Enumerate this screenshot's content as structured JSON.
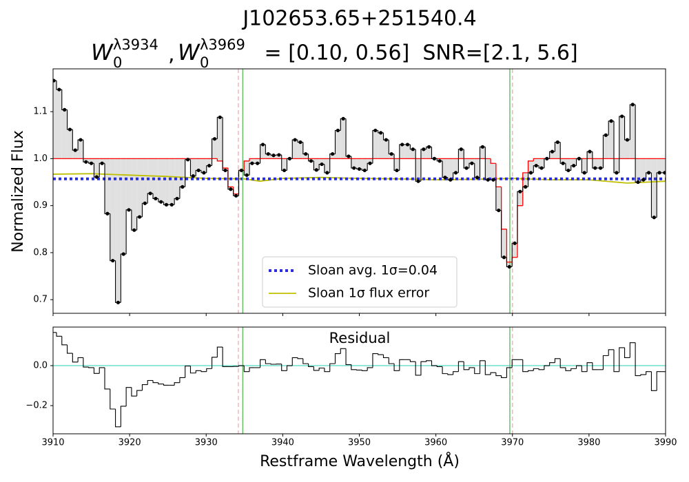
{
  "chart_data": [
    {
      "type": "line",
      "title": "J102653.65+251540.4",
      "subtitle_parts": [
        "W",
        "0",
        "λ3934",
        ",",
        "W",
        "0",
        "λ3969",
        " = [0.10, 0.56]  SNR=[2.1, 5.6]"
      ],
      "ylabel": "Normalized Flux",
      "ylim": [
        0.671,
        1.191
      ],
      "yticks": [
        0.7,
        0.8,
        0.9,
        {
          "value": 1.0,
          "label": "1.0"
        },
        1.1
      ],
      "x": [
        3910.1,
        3910.8,
        3911.5,
        3912.2,
        3912.9,
        3913.6,
        3914.3,
        3915.0,
        3915.7,
        3916.4,
        3917.1,
        3917.8,
        3918.5,
        3919.2,
        3919.9,
        3920.6,
        3921.3,
        3922.0,
        3922.7,
        3923.4,
        3924.1,
        3924.8,
        3925.5,
        3926.2,
        3926.9,
        3927.6,
        3928.3,
        3929.0,
        3929.7,
        3930.4,
        3931.1,
        3931.8,
        3932.5,
        3933.2,
        3933.9,
        3934.6,
        3935.3,
        3936.0,
        3936.7,
        3937.4,
        3938.1,
        3938.8,
        3939.5,
        3940.2,
        3940.9,
        3941.6,
        3942.3,
        3943.0,
        3943.7,
        3944.4,
        3945.1,
        3945.8,
        3946.5,
        3947.2,
        3947.9,
        3948.6,
        3949.3,
        3950.0,
        3950.7,
        3951.4,
        3952.1,
        3952.8,
        3953.5,
        3954.2,
        3954.9,
        3955.6,
        3956.3,
        3957.0,
        3957.7,
        3958.4,
        3959.1,
        3959.8,
        3960.5,
        3961.2,
        3961.9,
        3962.6,
        3963.3,
        3964.0,
        3964.7,
        3965.4,
        3966.1,
        3966.8,
        3967.5,
        3968.2,
        3968.9,
        3969.6,
        3970.3,
        3971.0,
        3971.7,
        3972.4,
        3973.1,
        3973.8,
        3974.5,
        3975.2,
        3975.9,
        3976.6,
        3977.3,
        3978.0,
        3978.7,
        3979.4,
        3980.1,
        3980.8,
        3981.5,
        3982.2,
        3982.9,
        3983.6,
        3984.3,
        3985.0,
        3985.7,
        3986.4,
        3987.1,
        3987.8,
        3988.5,
        3989.2,
        3989.9
      ],
      "flux": {
        "color": "#000000",
        "fill": "#e0e0e0",
        "values": [
          1.166,
          1.147,
          1.104,
          1.062,
          1.018,
          1.04,
          0.993,
          0.99,
          0.961,
          0.99,
          0.883,
          0.783,
          0.694,
          0.797,
          0.891,
          0.848,
          0.876,
          0.905,
          0.926,
          0.915,
          0.908,
          0.902,
          0.902,
          0.915,
          0.94,
          0.998,
          0.963,
          0.975,
          0.97,
          0.985,
          1.042,
          1.088,
          0.975,
          0.935,
          0.921,
          0.975,
          0.965,
          0.99,
          0.99,
          1.03,
          1.01,
          1.007,
          1.008,
          0.975,
          1.0,
          1.04,
          1.035,
          1.01,
          0.995,
          0.976,
          0.988,
          0.97,
          1.01,
          1.06,
          1.085,
          1.005,
          0.98,
          0.978,
          0.975,
          0.99,
          1.06,
          1.055,
          1.04,
          1.01,
          0.975,
          1.03,
          1.03,
          1.02,
          0.952,
          1.02,
          1.025,
          1.0,
          0.995,
          0.96,
          0.955,
          0.97,
          1.02,
          0.98,
          0.99,
          0.96,
          1.025,
          0.955,
          0.955,
          0.89,
          0.79,
          0.77,
          0.82,
          0.93,
          0.94,
          0.97,
          0.985,
          0.98,
          1.0,
          1.015,
          1.035,
          0.99,
          0.975,
          0.985,
          1.0,
          0.97,
          1.015,
          0.98,
          0.98,
          1.05,
          1.08,
          0.97,
          1.09,
          1.04,
          1.115,
          0.95,
          0.955,
          0.97,
          0.875,
          0.97,
          0.97
        ]
      },
      "model": {
        "color": "#ff0000",
        "values": [
          1,
          1,
          1,
          1,
          1,
          1,
          1,
          1,
          1,
          1,
          1,
          1,
          1,
          1,
          1,
          1,
          1,
          1,
          1,
          1,
          1,
          1,
          1,
          1,
          1,
          1,
          1,
          1,
          1,
          1,
          1,
          0.995,
          0.98,
          0.94,
          0.925,
          0.975,
          0.995,
          1,
          1,
          1,
          1,
          1,
          1,
          1,
          1,
          1,
          1,
          1,
          1,
          1,
          1,
          1,
          1,
          1,
          1,
          1,
          1,
          1,
          1,
          1,
          1,
          1,
          1,
          1,
          1,
          1,
          1,
          1,
          1,
          1,
          1,
          1,
          1,
          1,
          1,
          1,
          1,
          1,
          1,
          1,
          1,
          1,
          0.99,
          0.94,
          0.85,
          0.78,
          0.79,
          0.9,
          0.97,
          0.995,
          1,
          1,
          1,
          1,
          1,
          1,
          1,
          1,
          1,
          1,
          1,
          1,
          1,
          1,
          1,
          1,
          1,
          1,
          1,
          1,
          1,
          1,
          1,
          1,
          1
        ]
      },
      "error": {
        "name": "Sloan 1σ flux error",
        "color": "#bfbf00",
        "x": [
          3910,
          3915,
          3920,
          3925,
          3930,
          3935,
          3937,
          3940,
          3945,
          3950,
          3955,
          3960,
          3965,
          3970,
          3975,
          3980,
          3985,
          3990
        ],
        "values": [
          0.967,
          0.968,
          0.965,
          0.962,
          0.958,
          0.957,
          0.952,
          0.958,
          0.96,
          0.958,
          0.957,
          0.955,
          0.956,
          0.958,
          0.955,
          0.955,
          0.948,
          0.952
        ]
      },
      "avg": {
        "name": "Sloan avg. 1σ=0.04",
        "color": "#2b2be0",
        "value": 0.957
      },
      "vlines": [
        {
          "x": 3934.78,
          "color": "#6abf6a",
          "dashed": false
        },
        {
          "x": 3969.66,
          "color": "#6abf6a",
          "dashed": false
        },
        {
          "x": 3934.2,
          "color": "#f5b5b5",
          "dashed": true
        },
        {
          "x": 3970.0,
          "color": "#f5b5b5",
          "dashed": true
        }
      ]
    },
    {
      "type": "line",
      "title": "Residual",
      "xlabel": "Restframe Wavelength (Å)",
      "xlim": [
        3910,
        3990
      ],
      "xticks": [
        3910,
        3920,
        3930,
        3940,
        3950,
        3960,
        3970,
        3980,
        3990
      ],
      "ylim": [
        -0.341,
        0.193
      ],
      "yticks": [
        {
          "value": -0.2,
          "label": "−0.2"
        },
        {
          "value": 0,
          "label": "0.0"
        }
      ],
      "zero_line": {
        "value": 0,
        "color": "#6fe0cc"
      },
      "residual": {
        "color": "#000000",
        "values": [
          0.166,
          0.147,
          0.104,
          0.062,
          0.018,
          0.04,
          -0.007,
          -0.01,
          -0.039,
          -0.01,
          -0.117,
          -0.217,
          -0.306,
          -0.203,
          -0.109,
          -0.152,
          -0.124,
          -0.095,
          -0.074,
          -0.085,
          -0.092,
          -0.098,
          -0.098,
          -0.085,
          -0.06,
          -0.002,
          -0.037,
          -0.025,
          -0.03,
          -0.015,
          0.042,
          0.093,
          -0.005,
          -0.005,
          -0.004,
          0,
          -0.03,
          -0.01,
          -0.01,
          0.03,
          0.01,
          0.007,
          0.008,
          -0.025,
          0,
          0.04,
          0.035,
          0.01,
          -0.005,
          -0.024,
          -0.012,
          -0.03,
          0.01,
          0.06,
          0.085,
          0.005,
          -0.02,
          -0.022,
          -0.025,
          -0.01,
          0.06,
          0.055,
          0.04,
          0.01,
          -0.025,
          0.03,
          0.03,
          0.02,
          -0.048,
          0.02,
          0.025,
          0,
          -0.005,
          -0.04,
          -0.045,
          -0.03,
          0.02,
          -0.02,
          -0.01,
          -0.04,
          0.025,
          -0.045,
          -0.035,
          -0.05,
          -0.06,
          -0.01,
          0.03,
          0.03,
          -0.03,
          -0.025,
          -0.015,
          -0.02,
          0,
          0.015,
          0.035,
          -0.01,
          -0.025,
          -0.015,
          0,
          -0.03,
          0.015,
          -0.02,
          -0.02,
          0.05,
          0.08,
          -0.03,
          0.09,
          0.04,
          0.115,
          -0.05,
          -0.045,
          -0.03,
          -0.125,
          -0.03,
          -0.03
        ]
      }
    }
  ]
}
